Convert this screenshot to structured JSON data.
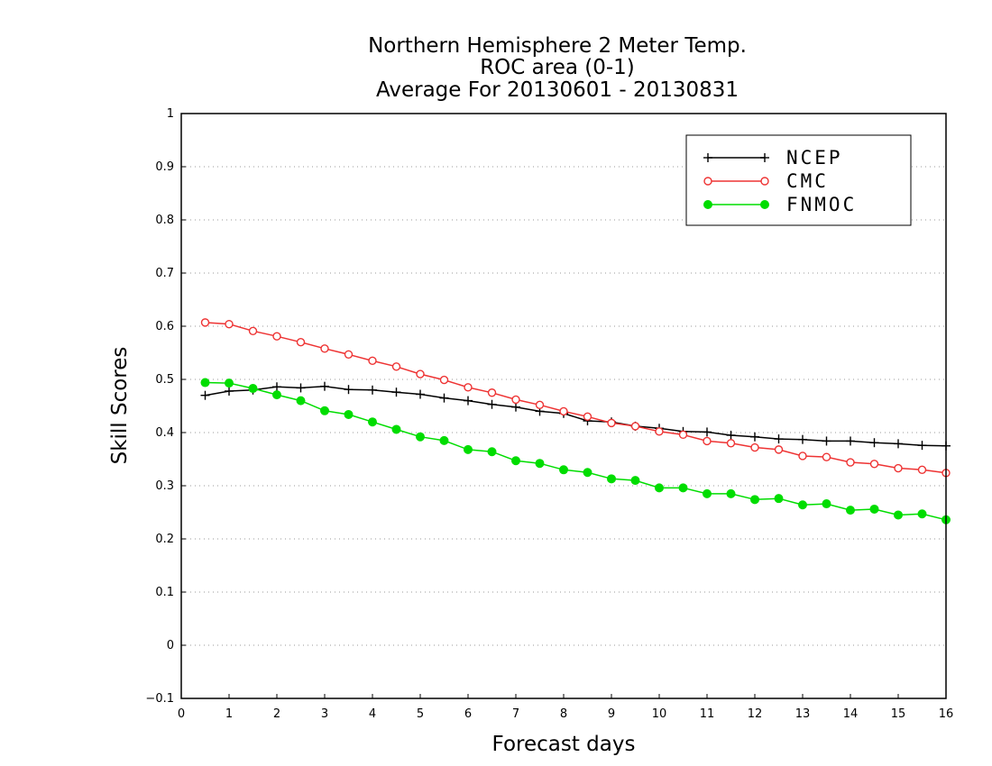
{
  "chart_data": {
    "type": "line",
    "title": [
      "Northern Hemisphere 2 Meter Temp.",
      "ROC area (0-1)",
      "Average For 20130601 - 20130831"
    ],
    "xlabel": "Forecast days",
    "ylabel": "Skill Scores",
    "xlim": [
      0,
      16
    ],
    "ylim": [
      -0.1,
      1
    ],
    "xticks": [
      "0",
      "1",
      "2",
      "3",
      "4",
      "5",
      "6",
      "7",
      "8",
      "9",
      "10",
      "11",
      "12",
      "13",
      "14",
      "15",
      "16"
    ],
    "yticks": [
      "−0.1",
      "0",
      "0.1",
      "0.2",
      "0.3",
      "0.4",
      "0.5",
      "0.6",
      "0.7",
      "0.8",
      "0.9",
      "1"
    ],
    "grid": true,
    "legend_position": "top-right",
    "x": [
      0.5,
      1,
      1.5,
      2,
      2.5,
      3,
      3.5,
      4,
      4.5,
      5,
      5.5,
      6,
      6.5,
      7,
      7.5,
      8,
      8.5,
      9,
      9.5,
      10,
      10.5,
      11,
      11.5,
      12,
      12.5,
      13,
      13.5,
      14,
      14.5,
      15,
      15.5,
      16
    ],
    "series": [
      {
        "name": "NCEP",
        "color": "#000000",
        "marker": "plus",
        "values": [
          0.47,
          0.478,
          0.48,
          0.486,
          0.484,
          0.487,
          0.481,
          0.48,
          0.476,
          0.472,
          0.465,
          0.46,
          0.453,
          0.448,
          0.44,
          0.436,
          0.422,
          0.42,
          0.412,
          0.408,
          0.402,
          0.401,
          0.395,
          0.392,
          0.388,
          0.387,
          0.384,
          0.384,
          0.381,
          0.379,
          0.376,
          0.375
        ]
      },
      {
        "name": "CMC",
        "color": "#ee3333",
        "marker": "open-circle",
        "values": [
          0.607,
          0.604,
          0.591,
          0.581,
          0.57,
          0.558,
          0.547,
          0.535,
          0.524,
          0.51,
          0.499,
          0.485,
          0.475,
          0.462,
          0.452,
          0.44,
          0.43,
          0.418,
          0.412,
          0.402,
          0.396,
          0.384,
          0.38,
          0.372,
          0.368,
          0.356,
          0.354,
          0.344,
          0.341,
          0.333,
          0.33,
          0.324
        ]
      },
      {
        "name": "FNMOC",
        "color": "#00dd00",
        "marker": "filled-circle",
        "values": [
          0.494,
          0.493,
          0.483,
          0.471,
          0.46,
          0.441,
          0.434,
          0.42,
          0.406,
          0.392,
          0.385,
          0.368,
          0.364,
          0.347,
          0.342,
          0.33,
          0.325,
          0.313,
          0.31,
          0.296,
          0.296,
          0.285,
          0.285,
          0.274,
          0.276,
          0.264,
          0.266,
          0.254,
          0.256,
          0.245,
          0.247,
          0.236
        ]
      }
    ]
  }
}
